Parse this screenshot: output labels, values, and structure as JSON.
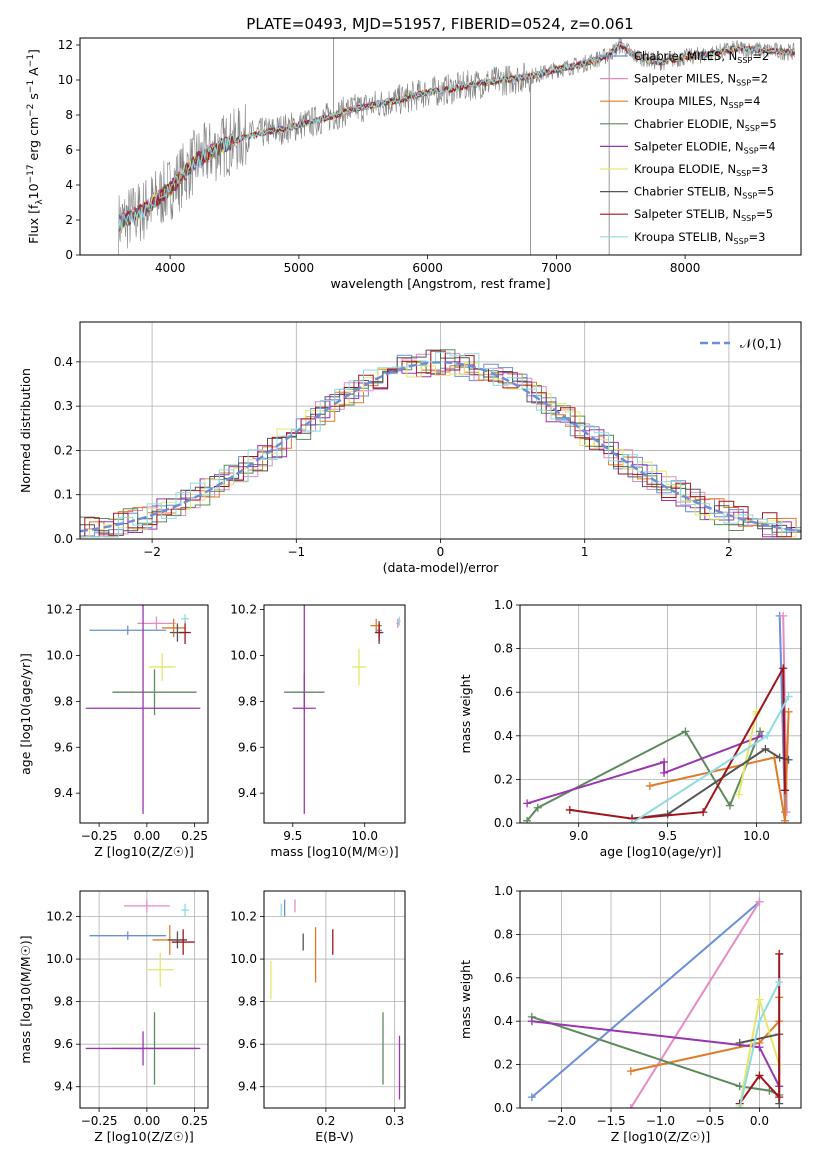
{
  "figure_title": "PLATE=0493, MJD=51957, FIBERID=0524, z=0.061",
  "series_styles": [
    {
      "name": "Chabrier MILES",
      "nssp": "2",
      "color": "#6a8fd8"
    },
    {
      "name": "Salpeter MILES",
      "nssp": "2",
      "color": "#e58bc6"
    },
    {
      "name": "Kroupa MILES",
      "nssp": "4",
      "color": "#e07b2a"
    },
    {
      "name": "Chabrier ELODIE",
      "nssp": "5",
      "color": "#5e8a5e"
    },
    {
      "name": "Salpeter ELODIE",
      "nssp": "4",
      "color": "#9b35b0"
    },
    {
      "name": "Kroupa ELODIE",
      "nssp": "3",
      "color": "#e4e86a"
    },
    {
      "name": "Chabrier STELIB",
      "nssp": "5",
      "color": "#555555"
    },
    {
      "name": "Salpeter STELIB",
      "nssp": "5",
      "color": "#a0151b"
    },
    {
      "name": "Kroupa STELIB",
      "nssp": "3",
      "color": "#8fdbe0"
    }
  ],
  "chart_data": [
    {
      "id": "spectrum",
      "type": "line",
      "xlabel": "wavelength [Angstrom, rest frame]",
      "ylabel_parts": [
        "Flux [f",
        "λ",
        "10",
        "−17",
        " erg cm",
        "−2",
        " s",
        "−1",
        " A",
        "−1",
        "]"
      ],
      "xlim": [
        3300,
        8900
      ],
      "ylim": [
        0,
        12.4
      ],
      "xticks": [
        4000,
        5000,
        6000,
        7000,
        8000
      ],
      "yticks": [
        0,
        2,
        4,
        6,
        8,
        10,
        12
      ],
      "observed_color": "#808080",
      "continuum": {
        "x": [
          3600,
          3800,
          4000,
          4200,
          4400,
          4600,
          4800,
          5000,
          5200,
          5400,
          5600,
          5800,
          6000,
          6200,
          6400,
          6600,
          6800,
          7000,
          7200,
          7400,
          7500,
          7600,
          7800,
          8000,
          8200,
          8400,
          8600,
          8800
        ],
        "y": [
          1.8,
          2.6,
          3.8,
          5.4,
          6.2,
          6.8,
          7.1,
          7.4,
          7.8,
          8.3,
          8.6,
          8.9,
          9.3,
          9.5,
          9.8,
          10.0,
          10.2,
          10.6,
          10.9,
          11.4,
          12.0,
          11.4,
          11.0,
          11.3,
          11.5,
          11.8,
          11.7,
          11.6
        ]
      },
      "emission_lines": [
        {
          "x": 5270,
          "y": 12.4
        },
        {
          "x": 6800,
          "y": 0.0
        },
        {
          "x": 7410,
          "y": 0.0
        }
      ]
    },
    {
      "id": "residuals",
      "type": "histogram",
      "xlabel": "(data-model)/error",
      "ylabel": "Normed distribution",
      "xlim": [
        -2.5,
        2.5
      ],
      "ylim": [
        0,
        0.49
      ],
      "xticks": [
        -2,
        -1,
        0,
        1,
        2
      ],
      "yticks": [
        0.0,
        0.1,
        0.2,
        0.3,
        0.4
      ],
      "reference": {
        "name": "𝒩(0,1)",
        "mean": 0,
        "sigma": 1
      }
    },
    {
      "id": "age_vs_Z",
      "type": "scatter",
      "xlabel": "Z [log10(Z/Z☉)]",
      "ylabel": "age [log10(age/yr)]",
      "xlim": [
        -0.35,
        0.32
      ],
      "ylim": [
        9.27,
        10.22
      ],
      "xticks": [
        -0.25,
        0.0,
        0.25
      ],
      "yticks": [
        9.4,
        9.6,
        9.8,
        10.0,
        10.2
      ],
      "points": [
        {
          "x": -0.1,
          "y": 10.11,
          "xerr": 0.2,
          "yerr": 0.02
        },
        {
          "x": 0.05,
          "y": 10.14,
          "xerr": 0.1,
          "yerr": 0.03
        },
        {
          "x": 0.14,
          "y": 10.12,
          "xerr": 0.06,
          "yerr": 0.04
        },
        {
          "x": 0.04,
          "y": 9.84,
          "xerr": 0.22,
          "yerr": 0.1
        },
        {
          "x": -0.02,
          "y": 9.77,
          "xerr": 0.3,
          "yerr": 0.46
        },
        {
          "x": 0.08,
          "y": 9.95,
          "xerr": 0.07,
          "yerr": 0.06
        },
        {
          "x": 0.16,
          "y": 10.1,
          "xerr": 0.04,
          "yerr": 0.04
        },
        {
          "x": 0.2,
          "y": 10.1,
          "xerr": 0.03,
          "yerr": 0.05
        },
        {
          "x": 0.2,
          "y": 10.16,
          "xerr": 0.02,
          "yerr": 0.02
        }
      ]
    },
    {
      "id": "age_vs_mass",
      "type": "scatter",
      "xlabel": "mass [log10(M/M☉)]",
      "ylabel": "",
      "xlim": [
        9.3,
        10.28
      ],
      "ylim": [
        9.27,
        10.22
      ],
      "xticks": [
        9.5,
        10.0
      ],
      "yticks": [
        9.4,
        9.6,
        9.8,
        10.0,
        10.2
      ],
      "points": [
        {
          "x": 10.1,
          "y": 10.11,
          "xerr": 0.02,
          "yerr": 0.03
        },
        {
          "x": 10.23,
          "y": 10.14,
          "xerr": 0.01,
          "yerr": 0.02
        },
        {
          "x": 10.08,
          "y": 10.13,
          "xerr": 0.04,
          "yerr": 0.03
        },
        {
          "x": 9.58,
          "y": 9.84,
          "xerr": 0.14,
          "yerr": 0.08
        },
        {
          "x": 9.58,
          "y": 9.77,
          "xerr": 0.08,
          "yerr": 0.46
        },
        {
          "x": 9.96,
          "y": 9.95,
          "xerr": 0.05,
          "yerr": 0.08
        },
        {
          "x": 10.1,
          "y": 10.1,
          "xerr": 0.03,
          "yerr": 0.05
        },
        {
          "x": 10.1,
          "y": 10.1,
          "xerr": 0.02,
          "yerr": 0.04
        },
        {
          "x": 10.24,
          "y": 10.15,
          "xerr": 0.01,
          "yerr": 0.02
        }
      ]
    },
    {
      "id": "weight_vs_age",
      "type": "line",
      "xlabel": "age [log10(age/yr)]",
      "ylabel": "mass weight",
      "xlim": [
        8.67,
        10.25
      ],
      "ylim": [
        0,
        1
      ],
      "xticks": [
        9.0,
        9.5,
        10.0
      ],
      "yticks": [
        0.0,
        0.2,
        0.4,
        0.6,
        0.8,
        1.0
      ],
      "series": [
        {
          "x": [
            10.13,
            10.16
          ],
          "y": [
            0.95,
            0.05
          ]
        },
        {
          "x": [
            10.15,
            10.17
          ],
          "y": [
            0.95,
            0.05
          ]
        },
        {
          "x": [
            9.4,
            10.1,
            10.16,
            10.18
          ],
          "y": [
            0.17,
            0.3,
            0.01,
            0.51
          ]
        },
        {
          "x": [
            8.71,
            8.77,
            9.6,
            9.85,
            10.02
          ],
          "y": [
            0.01,
            0.07,
            0.42,
            0.08,
            0.42
          ]
        },
        {
          "x": [
            8.71,
            9.48,
            9.48,
            10.03
          ],
          "y": [
            0.09,
            0.28,
            0.23,
            0.4
          ]
        },
        {
          "x": [
            9.9,
            10.0,
            10.0
          ],
          "y": [
            0.13,
            0.51,
            0.5
          ]
        },
        {
          "x": [
            9.3,
            9.5,
            10.05,
            10.13,
            10.18
          ],
          "y": [
            0.02,
            0.04,
            0.34,
            0.3,
            0.29
          ]
        },
        {
          "x": [
            8.95,
            9.3,
            9.7,
            10.15,
            10.16
          ],
          "y": [
            0.06,
            0.02,
            0.05,
            0.71,
            0.15
          ]
        },
        {
          "x": [
            9.3,
            10.06,
            10.18
          ],
          "y": [
            0.0,
            0.4,
            0.58
          ]
        }
      ]
    },
    {
      "id": "mass_vs_Z",
      "type": "scatter",
      "xlabel": "Z [log10(Z/Z☉)]",
      "ylabel": "mass [log10(M/M☉)]",
      "xlim": [
        -0.35,
        0.32
      ],
      "ylim": [
        9.3,
        10.32
      ],
      "xticks": [
        -0.25,
        0.0,
        0.25
      ],
      "yticks": [
        9.4,
        9.6,
        9.8,
        10.0,
        10.2
      ],
      "points": [
        {
          "x": -0.1,
          "y": 10.11,
          "xerr": 0.2,
          "yerr": 0.02
        },
        {
          "x": 0.0,
          "y": 10.25,
          "xerr": 0.12,
          "yerr": 0.03
        },
        {
          "x": 0.12,
          "y": 10.09,
          "xerr": 0.09,
          "yerr": 0.07
        },
        {
          "x": 0.04,
          "y": 9.58,
          "xerr": 0.22,
          "yerr": 0.17
        },
        {
          "x": -0.02,
          "y": 9.58,
          "xerr": 0.3,
          "yerr": 0.08
        },
        {
          "x": 0.07,
          "y": 9.95,
          "xerr": 0.07,
          "yerr": 0.08
        },
        {
          "x": 0.16,
          "y": 10.09,
          "xerr": 0.05,
          "yerr": 0.04
        },
        {
          "x": 0.19,
          "y": 10.08,
          "xerr": 0.06,
          "yerr": 0.06
        },
        {
          "x": 0.2,
          "y": 10.23,
          "xerr": 0.02,
          "yerr": 0.03
        }
      ]
    },
    {
      "id": "mass_vs_ebv",
      "type": "scatter",
      "xlabel": "E(B-V)",
      "ylabel": "",
      "xlim": [
        0.11,
        0.315
      ],
      "ylim": [
        9.3,
        10.32
      ],
      "xticks": [
        0.1,
        0.2,
        0.3
      ],
      "yticks": [
        9.4,
        9.6,
        9.8,
        10.0,
        10.2
      ],
      "points": [
        {
          "x": 0.14,
          "y": 10.24,
          "xerr": 0.0,
          "yerr": 0.04
        },
        {
          "x": 0.155,
          "y": 10.25,
          "xerr": 0.0,
          "yerr": 0.03
        },
        {
          "x": 0.185,
          "y": 10.02,
          "xerr": 0.0,
          "yerr": 0.13
        },
        {
          "x": 0.283,
          "y": 9.58,
          "xerr": 0.0,
          "yerr": 0.17
        },
        {
          "x": 0.307,
          "y": 9.49,
          "xerr": 0.0,
          "yerr": 0.15
        },
        {
          "x": 0.12,
          "y": 9.9,
          "xerr": 0.0,
          "yerr": 0.09
        },
        {
          "x": 0.167,
          "y": 10.08,
          "xerr": 0.0,
          "yerr": 0.04
        },
        {
          "x": 0.21,
          "y": 10.08,
          "xerr": 0.0,
          "yerr": 0.06
        },
        {
          "x": 0.135,
          "y": 10.23,
          "xerr": 0.0,
          "yerr": 0.03
        }
      ]
    },
    {
      "id": "weight_vs_Z",
      "type": "line",
      "xlabel": "Z [log10(Z/Z☉)]",
      "ylabel": "mass weight",
      "xlim": [
        -2.42,
        0.42
      ],
      "ylim": [
        0,
        1
      ],
      "xticks": [
        -2.0,
        -1.5,
        -1.0,
        -0.5,
        0.0
      ],
      "yticks": [
        0.0,
        0.2,
        0.4,
        0.6,
        0.8,
        1.0
      ],
      "series": [
        {
          "x": [
            -2.3,
            0.0
          ],
          "y": [
            0.05,
            0.95
          ]
        },
        {
          "x": [
            -1.3,
            0.0
          ],
          "y": [
            0.0,
            0.95
          ]
        },
        {
          "x": [
            -1.3,
            0.0,
            0.2,
            0.2
          ],
          "y": [
            0.17,
            0.3,
            0.4,
            0.51
          ]
        },
        {
          "x": [
            -2.3,
            -0.2,
            0.1,
            0.2
          ],
          "y": [
            0.42,
            0.1,
            0.08,
            0.06
          ]
        },
        {
          "x": [
            -2.3,
            0.0,
            0.2
          ],
          "y": [
            0.4,
            0.28,
            0.1
          ]
        },
        {
          "x": [
            -0.2,
            0.0,
            0.2
          ],
          "y": [
            0.01,
            0.5,
            0.2
          ]
        },
        {
          "x": [
            -0.2,
            0.2,
            0.2
          ],
          "y": [
            0.3,
            0.34,
            0.02
          ]
        },
        {
          "x": [
            -0.2,
            0.0,
            0.2,
            0.2
          ],
          "y": [
            0.02,
            0.15,
            0.05,
            0.71
          ]
        },
        {
          "x": [
            -0.2,
            0.0,
            0.2
          ],
          "y": [
            0.0,
            0.4,
            0.58
          ]
        }
      ]
    }
  ]
}
